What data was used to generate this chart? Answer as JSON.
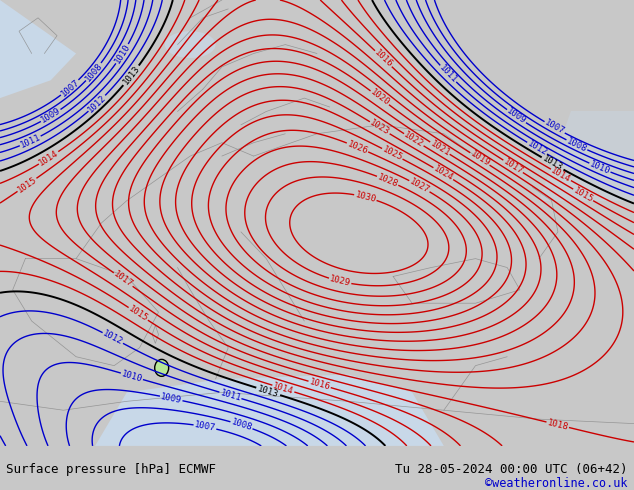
{
  "title_left": "Surface pressure [hPa] ECMWF",
  "title_right": "Tu 28-05-2024 00:00 UTC (06+42)",
  "credit": "©weatheronline.co.uk",
  "bg_color": "#c8c8c8",
  "land_color": "#b8e896",
  "contour_color_red": "#cc0000",
  "contour_color_blue": "#0000cc",
  "contour_color_black": "#000000",
  "font_color_bottom": "#000000",
  "credit_color": "#0000cc",
  "bottom_bar_color": "#c8c8c8",
  "figsize": [
    6.34,
    4.9
  ],
  "dpi": 100
}
